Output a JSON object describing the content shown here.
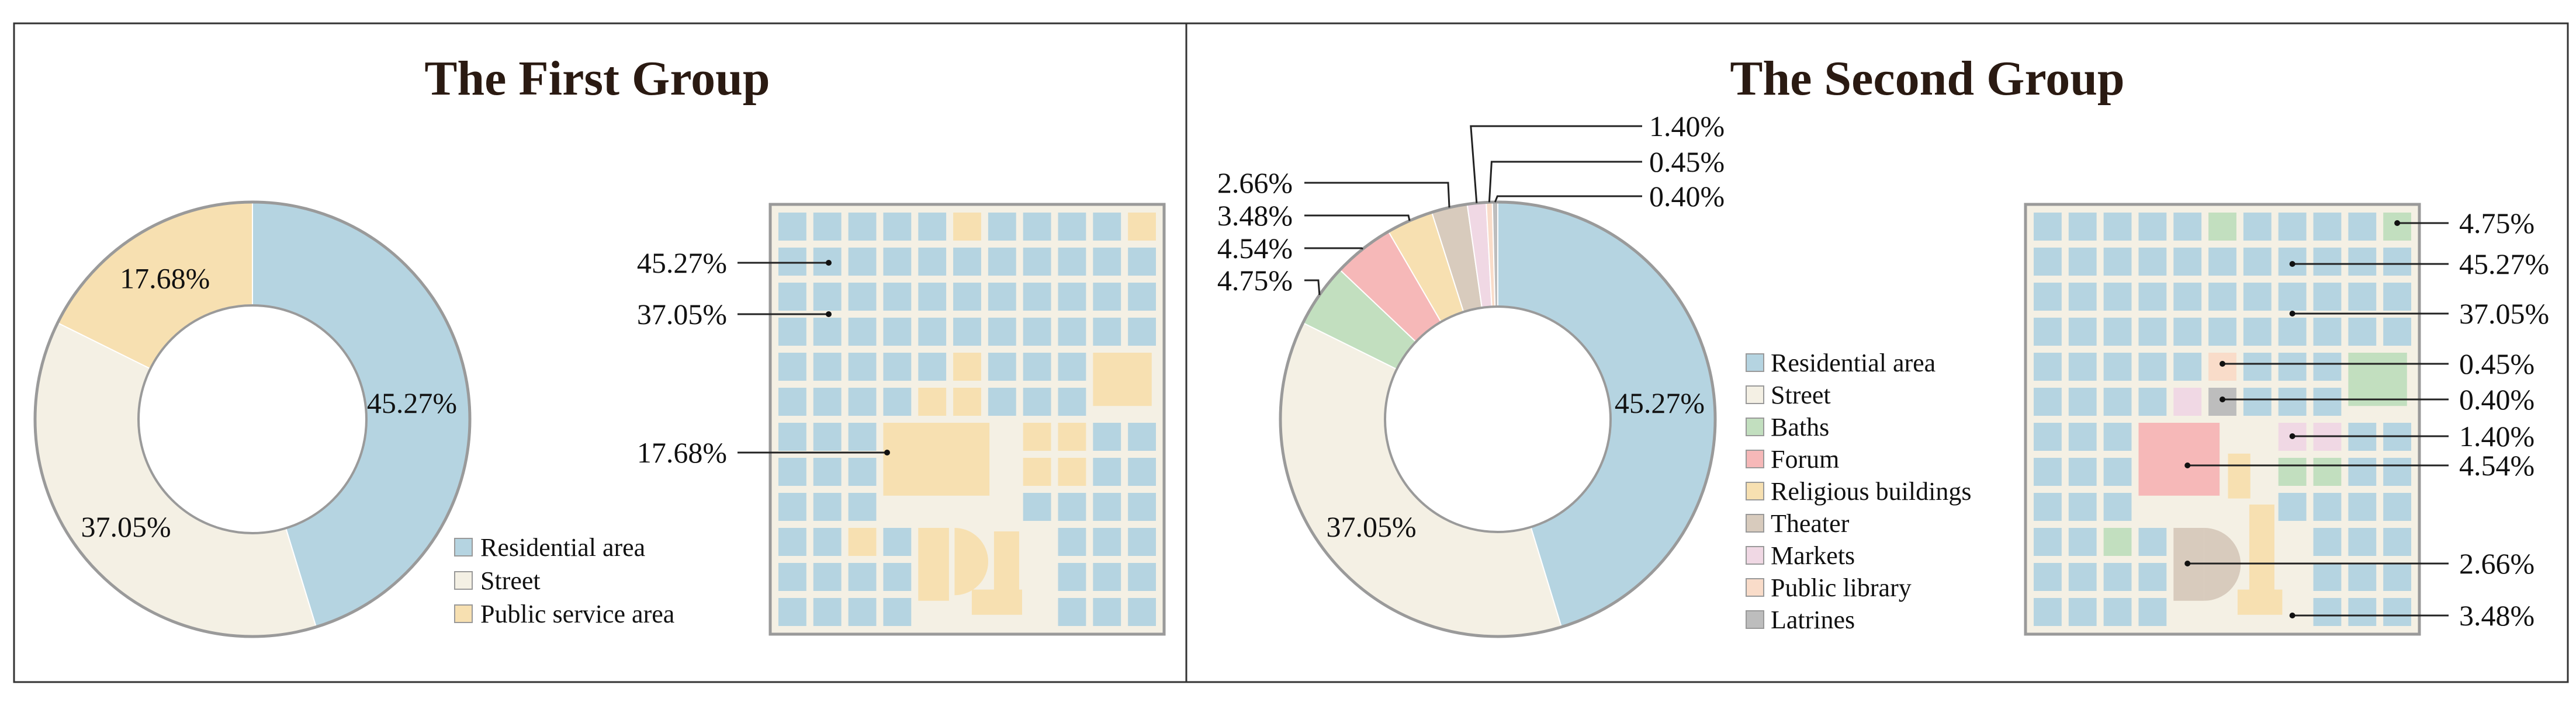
{
  "colors": {
    "residential": "#b5d4e1",
    "street": "#f4f0e4",
    "public_service": "#f7e0b1",
    "baths": "#c2dfbf",
    "forum": "#f6b8b8",
    "religious": "#f7e0b1",
    "theater": "#d8cbbd",
    "markets": "#f0d8e4",
    "library": "#f9dcc9",
    "latrines": "#bdbdbd",
    "frame": "#333333",
    "ring_edge": "#9a9a9a"
  },
  "chart_data": [
    {
      "type": "pie",
      "donut": true,
      "title": "The First Group",
      "categories": [
        "Residential area",
        "Street",
        "Public service area"
      ],
      "values": [
        45.27,
        37.05,
        17.68
      ],
      "labels": [
        "45.27%",
        "37.05%",
        "17.68%"
      ],
      "legend": [
        "Residential area",
        "Street",
        "Public service area"
      ],
      "map_callouts": [
        "45.27%",
        "37.05%",
        "17.68%"
      ]
    },
    {
      "type": "pie",
      "donut": true,
      "title": "The Second Group",
      "categories": [
        "Residential area",
        "Street",
        "Baths",
        "Forum",
        "Religious buildings",
        "Theater",
        "Markets",
        "Public library",
        "Latrines"
      ],
      "values": [
        45.27,
        37.05,
        4.75,
        4.54,
        3.48,
        2.66,
        1.4,
        0.45,
        0.4
      ],
      "labels": [
        "45.27%",
        "37.05%",
        "4.75%",
        "4.54%",
        "3.48%",
        "2.66%",
        "1.40%",
        "0.45%",
        "0.40%"
      ],
      "legend": [
        "Residential area",
        "Street",
        "Baths",
        "Forum",
        "Religious buildings",
        "Theater",
        "Markets",
        "Public library",
        "Latrines"
      ],
      "map_callouts": [
        "4.75%",
        "45.27%",
        "37.05%",
        "0.45%",
        "0.40%",
        "1.40%",
        "4.54%",
        "2.66%",
        "3.48%"
      ]
    }
  ]
}
